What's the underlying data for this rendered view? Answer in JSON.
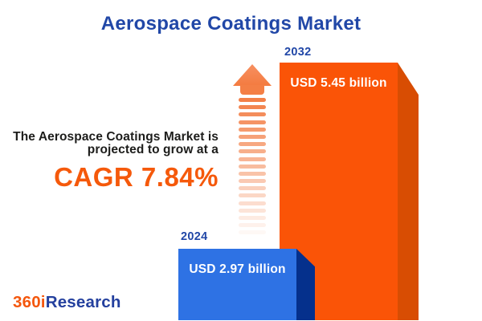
{
  "header": {
    "title": "Aerospace Coatings Market"
  },
  "highlight": {
    "line1": "The Aerospace Coatings Market is",
    "line2": "projected to grow at a",
    "cagr_label": "CAGR 7.84%",
    "cagr_percent": 7.84
  },
  "chart_data": {
    "type": "bar",
    "title": "Aerospace Coatings Market",
    "categories": [
      "2024",
      "2032"
    ],
    "values": [
      2.97,
      5.45
    ],
    "unit": "USD billion",
    "value_labels": [
      "USD 2.97 billion",
      "USD 5.45 billion"
    ],
    "cagr_percent": 7.84,
    "legend": "none",
    "grid": false,
    "bar_style": "3d-extruded",
    "series": [
      {
        "name": "Aerospace Coatings Market size",
        "values": [
          2.97,
          5.45
        ]
      }
    ]
  },
  "growth_arrow": {
    "icon": "up-arrow-dashed-icon",
    "dash_count": 19,
    "color": "#F2793E"
  },
  "logo": {
    "part1": "360i",
    "part2": "Research"
  },
  "colors": {
    "title_blue": "#2147A7",
    "body_text": "#1D1D1B",
    "cagr_orange": "#F5590B",
    "bar_2032_front": "#FA5407",
    "bar_2032_side": "#D84D03",
    "bar_2024_front": "#2E72E4",
    "bar_2024_side": "#05308C",
    "logo_orange": "#F4570D",
    "logo_blue": "#24409E"
  }
}
